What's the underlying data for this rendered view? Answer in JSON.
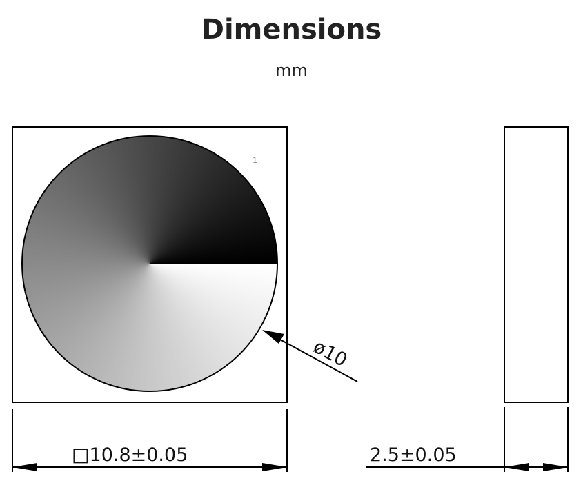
{
  "title": "Dimensions",
  "unit": "mm",
  "diagram": {
    "marker": "1",
    "diameter_label": "ø10",
    "width_label": "□10.8±0.05",
    "thickness_label": "2.5±0.05"
  }
}
